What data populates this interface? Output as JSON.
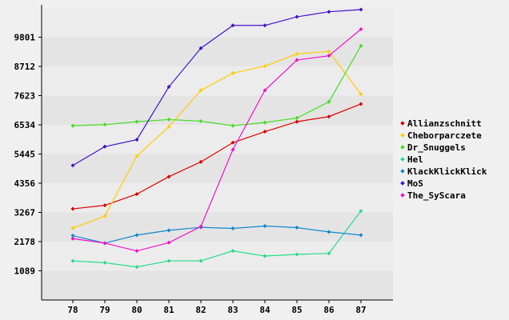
{
  "chart_data": {
    "type": "line",
    "x": [
      "78",
      "79",
      "80",
      "81",
      "82",
      "83",
      "84",
      "85",
      "86",
      "87"
    ],
    "y_ticks": [
      1089,
      2178,
      3267,
      4356,
      5445,
      6534,
      7623,
      8712,
      9801
    ],
    "ylim": [
      0,
      10890
    ],
    "grid": "alternating horizontal bands",
    "legend_position": "right",
    "series": [
      {
        "name": "Allianzschnitt",
        "color": "#dd0000",
        "values": [
          3400,
          3530,
          3950,
          4600,
          5150,
          5870,
          6280,
          6650,
          6840,
          7310
        ]
      },
      {
        "name": "Cheborparczete",
        "color": "#ffcc00",
        "values": [
          2680,
          3130,
          5370,
          6460,
          7820,
          8460,
          8720,
          9180,
          9270,
          7680
        ]
      },
      {
        "name": "Dr_Snuggels",
        "color": "#44dd22",
        "values": [
          6500,
          6540,
          6650,
          6730,
          6670,
          6500,
          6620,
          6790,
          7390,
          9480
        ]
      },
      {
        "name": "Hel",
        "color": "#22dd88",
        "values": [
          1460,
          1390,
          1230,
          1460,
          1460,
          1830,
          1640,
          1700,
          1740,
          3320
        ]
      },
      {
        "name": "KlackKlickKlick",
        "color": "#1188cc",
        "values": [
          2400,
          2120,
          2420,
          2600,
          2710,
          2670,
          2760,
          2700,
          2540,
          2420
        ]
      },
      {
        "name": "MoS",
        "color": "#4411cc",
        "values": [
          5020,
          5720,
          5980,
          7950,
          9390,
          10240,
          10240,
          10560,
          10750,
          10830
        ]
      },
      {
        "name": "The_SyScara",
        "color": "#ee11cc",
        "values": [
          2290,
          2120,
          1830,
          2140,
          2740,
          5610,
          7820,
          8950,
          9110,
          10100
        ]
      }
    ]
  }
}
